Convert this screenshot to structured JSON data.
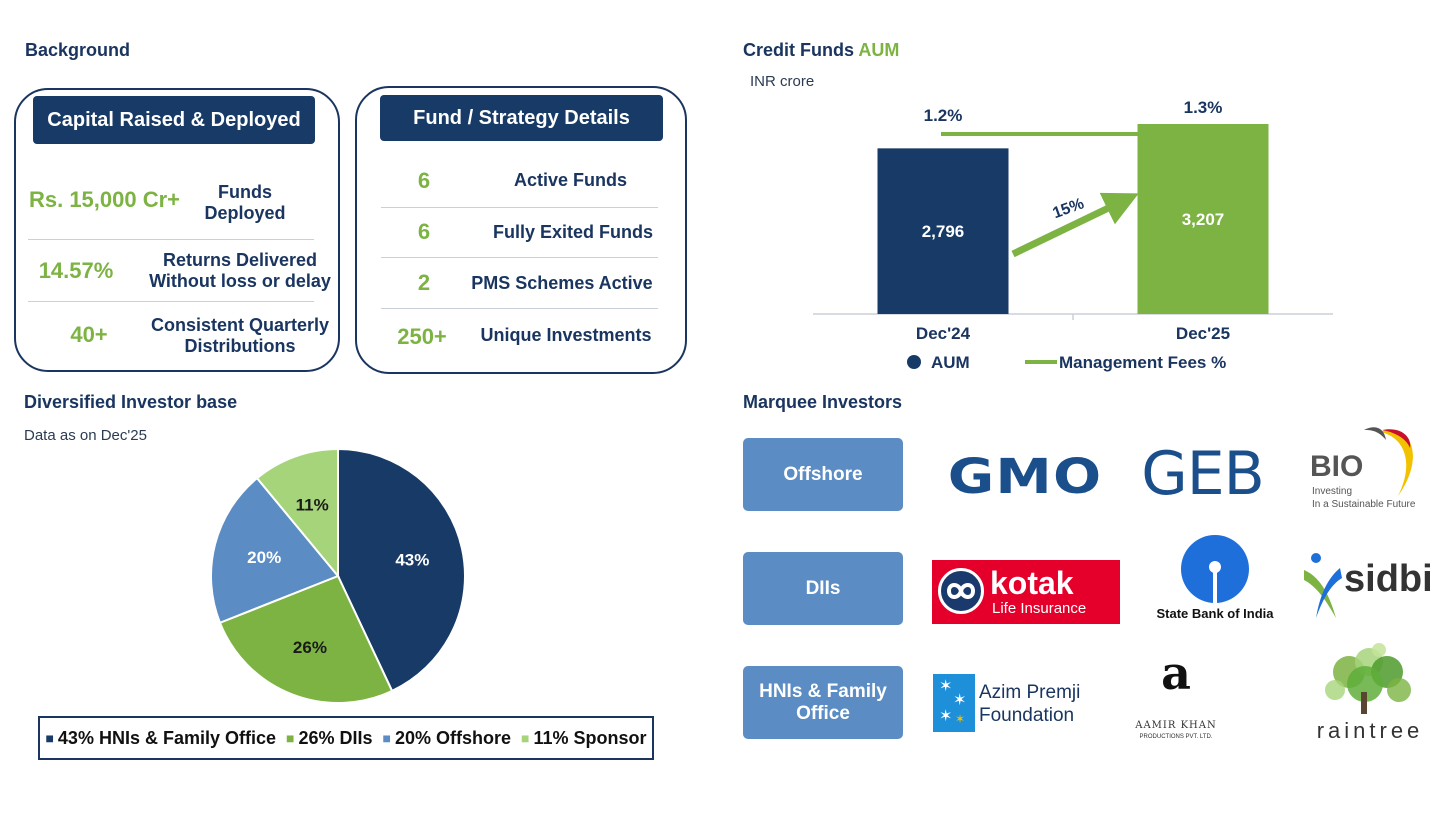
{
  "colors": {
    "navy": "#173a66",
    "green": "#7cb342",
    "blue": "#5b8cc4",
    "light_green": "#a6d47a"
  },
  "background": {
    "title": "Background",
    "capital_card": {
      "header": "Capital Raised & Deployed",
      "rows": [
        {
          "value": "Rs. 15,000 Cr+",
          "label_line1": "Funds",
          "label_line2": "Deployed"
        },
        {
          "value": "14.57%",
          "label_line1": "Returns Delivered",
          "label_line2": "Without loss or delay"
        },
        {
          "value": "40+",
          "label_line1": "Consistent Quarterly",
          "label_line2": "Distributions"
        }
      ]
    },
    "fund_card": {
      "header": "Fund / Strategy Details",
      "rows": [
        {
          "value": "6",
          "label": "Active Funds"
        },
        {
          "value": "6",
          "label": "Fully Exited Funds"
        },
        {
          "value": "2",
          "label": "PMS Schemes Active"
        },
        {
          "value": "250+",
          "label": "Unique Investments"
        }
      ]
    }
  },
  "credit_funds": {
    "title_part1": "Credit Funds",
    "title_part2": "AUM",
    "unit": "INR crore",
    "growth_label": "15%",
    "legend_aum": "AUM",
    "legend_fees": "Management Fees %"
  },
  "investor_base": {
    "title": "Diversified Investor base",
    "note": "Data as on Dec'25",
    "legend": [
      {
        "marker": "■",
        "text": "43% HNIs & Family Office",
        "color": "#173a66"
      },
      {
        "marker": "■",
        "text": "26% DIIs",
        "color": "#7cb342"
      },
      {
        "marker": "■",
        "text": "20% Offshore",
        "color": "#5b8cc4"
      },
      {
        "marker": "■",
        "text": "11% Sponsor",
        "color": "#a6d47a"
      }
    ]
  },
  "marquee": {
    "title": "Marquee Investors",
    "categories": [
      "Offshore",
      "DIIs",
      "HNIs & Family Office"
    ],
    "logos": {
      "gmo": "GMO",
      "geb": "GEB",
      "bio_name": "BIO",
      "bio_tag1": "Investing",
      "bio_tag2": "In a Sustainable Future",
      "kotak_name": "kotak",
      "kotak_sub": "Life Insurance",
      "sbi": "State Bank of India",
      "sidbi": "sidbi",
      "azim1": "Azim Premji",
      "azim2": "Foundation",
      "aamir_a": "a",
      "aamir1": "AAMIR KHAN",
      "aamir2": "PRODUCTIONS PVT. LTD.",
      "raintree": "raintree"
    }
  },
  "chart_data": [
    {
      "type": "bar",
      "title": "Credit Funds AUM",
      "unit": "INR crore",
      "categories": [
        "Dec'24",
        "Dec'25"
      ],
      "series": [
        {
          "name": "AUM",
          "values": [
            2796,
            3207
          ],
          "labels": [
            "2,796",
            "3,207"
          ],
          "colors": [
            "#173a66",
            "#7cb342"
          ]
        },
        {
          "name": "Management Fees %",
          "values": [
            1.2,
            1.3
          ],
          "labels": [
            "1.2%",
            "1.3%"
          ],
          "type": "line",
          "color": "#7cb342"
        }
      ],
      "annotation": "15%",
      "legend": "bottom"
    },
    {
      "type": "pie",
      "title": "Diversified Investor base",
      "slices": [
        {
          "name": "HNIs & Family Office",
          "value": 43,
          "label": "43%",
          "color": "#173a66",
          "label_color": "#ffffff"
        },
        {
          "name": "DIIs",
          "value": 26,
          "label": "26%",
          "color": "#7cb342",
          "label_color": "#1a1a1a"
        },
        {
          "name": "Offshore",
          "value": 20,
          "label": "20%",
          "color": "#5b8cc4",
          "label_color": "#ffffff"
        },
        {
          "name": "Sponsor",
          "value": 11,
          "label": "11%",
          "color": "#a6d47a",
          "label_color": "#1a1a1a"
        }
      ],
      "legend": "bottom"
    }
  ]
}
